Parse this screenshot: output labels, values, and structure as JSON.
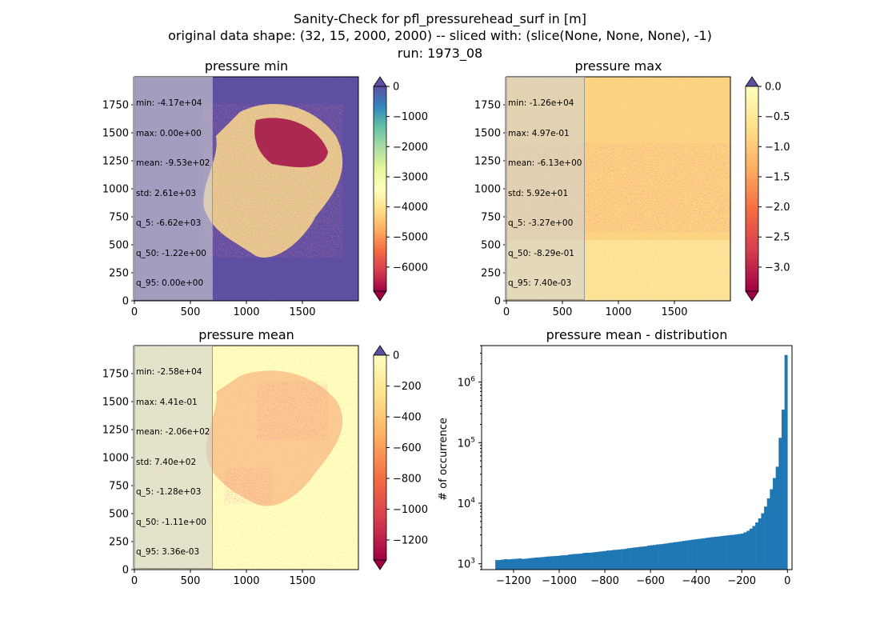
{
  "figure": {
    "title_lines": [
      "Sanity-Check for pfl_pressurehead_surf in [m]",
      "original data shape: (32, 15, 2000, 2000) -- sliced with: (slice(None, None, None), -1)",
      "run: 1973_08"
    ]
  },
  "colors": {
    "spectral": [
      "#9e0142",
      "#d53e4f",
      "#f46d43",
      "#fdae61",
      "#fee08b",
      "#ffffbf",
      "#e6f598",
      "#abdda4",
      "#66c2a5",
      "#3288bd",
      "#5e4fa2"
    ],
    "histogram_bar": "#1f77b4"
  },
  "chart_data": [
    {
      "type": "heatmap",
      "title": "pressure min",
      "xlim": [
        0,
        2000
      ],
      "ylim": [
        0,
        2000
      ],
      "x_ticks": [
        "0",
        "500",
        "1000",
        "1500"
      ],
      "y_ticks": [
        "0",
        "250",
        "500",
        "750",
        "1000",
        "1250",
        "1500",
        "1750"
      ],
      "colorbar": {
        "range": [
          -6800,
          0
        ],
        "extend": "both",
        "ticks": [
          "0",
          "−1000",
          "−2000",
          "−3000",
          "−4000",
          "−5000",
          "−6000"
        ],
        "tick_values": [
          0,
          -1000,
          -2000,
          -3000,
          -4000,
          -5000,
          -6000
        ]
      },
      "stats": [
        "min: -4.17e+04",
        "max: 0.00e+00",
        "mean: -9.53e+02",
        "std: 2.61e+03",
        "q_5: -6.62e+03",
        "q_50: -1.22e+00",
        "q_95: 0.00e+00"
      ]
    },
    {
      "type": "heatmap",
      "title": "pressure max",
      "xlim": [
        0,
        2000
      ],
      "ylim": [
        0,
        2000
      ],
      "x_ticks": [
        "0",
        "500",
        "1000",
        "1500"
      ],
      "y_ticks": [
        "0",
        "250",
        "500",
        "750",
        "1000",
        "1250",
        "1500",
        "1750"
      ],
      "colorbar": {
        "range": [
          -3.4,
          0
        ],
        "extend": "both",
        "ticks": [
          "0.0",
          "−0.5",
          "−1.0",
          "−1.5",
          "−2.0",
          "−2.5",
          "−3.0"
        ],
        "tick_values": [
          0,
          -0.5,
          -1.0,
          -1.5,
          -2.0,
          -2.5,
          -3.0
        ]
      },
      "stats": [
        "min: -1.26e+04",
        "max: 4.97e-01",
        "mean: -6.13e+00",
        "std: 5.92e+01",
        "q_5: -3.27e+00",
        "q_50: -8.29e-01",
        "q_95: 7.40e-03"
      ]
    },
    {
      "type": "heatmap",
      "title": "pressure mean",
      "xlim": [
        0,
        2000
      ],
      "ylim": [
        0,
        2000
      ],
      "x_ticks": [
        "0",
        "500",
        "1000",
        "1500"
      ],
      "y_ticks": [
        "0",
        "250",
        "500",
        "750",
        "1000",
        "1250",
        "1500",
        "1750"
      ],
      "colorbar": {
        "range": [
          -1330,
          0
        ],
        "extend": "both",
        "ticks": [
          "0",
          "−200",
          "−400",
          "−600",
          "−800",
          "−1000",
          "−1200"
        ],
        "tick_values": [
          0,
          -200,
          -400,
          -600,
          -800,
          -1000,
          -1200
        ]
      },
      "stats": [
        "min: -2.58e+04",
        "max: 4.41e-01",
        "mean: -2.06e+02",
        "std: 7.40e+02",
        "q_5: -1.28e+03",
        "q_50: -1.11e+00",
        "q_95: 3.36e-03"
      ]
    },
    {
      "type": "bar",
      "title": "pressure mean - distribution",
      "ylabel": "# of occurrence",
      "xlabel": "",
      "y_scale": "log",
      "xlim": [
        -1340,
        20
      ],
      "ylim": [
        800,
        4000000
      ],
      "x_ticks": [
        "−1200",
        "−1000",
        "−800",
        "−600",
        "−400",
        "−200",
        "0"
      ],
      "x_tick_values": [
        -1200,
        -1000,
        -800,
        -600,
        -400,
        -200,
        0
      ],
      "y_ticks": [
        1000,
        10000,
        100000,
        1000000
      ],
      "bin_edges": [
        -1280,
        0
      ],
      "bins": 100,
      "counts": [
        1150,
        1150,
        1170,
        1190,
        1180,
        1190,
        1200,
        1210,
        1220,
        1200,
        1210,
        1230,
        1240,
        1260,
        1270,
        1280,
        1290,
        1310,
        1320,
        1330,
        1340,
        1350,
        1370,
        1380,
        1390,
        1420,
        1440,
        1450,
        1460,
        1470,
        1510,
        1520,
        1520,
        1540,
        1560,
        1580,
        1600,
        1620,
        1650,
        1660,
        1690,
        1700,
        1720,
        1740,
        1760,
        1800,
        1820,
        1850,
        1870,
        1900,
        1920,
        1940,
        1990,
        2020,
        2040,
        2080,
        2100,
        2130,
        2160,
        2200,
        2230,
        2270,
        2300,
        2340,
        2380,
        2420,
        2450,
        2490,
        2530,
        2560,
        2600,
        2640,
        2680,
        2720,
        2760,
        2790,
        2820,
        2860,
        2900,
        2940,
        2980,
        3000,
        3050,
        3100,
        3150,
        3300,
        3500,
        3800,
        4200,
        4800,
        5600,
        6800,
        8800,
        12000,
        17000,
        26000,
        40000,
        120000,
        350000,
        2800000
      ]
    }
  ]
}
